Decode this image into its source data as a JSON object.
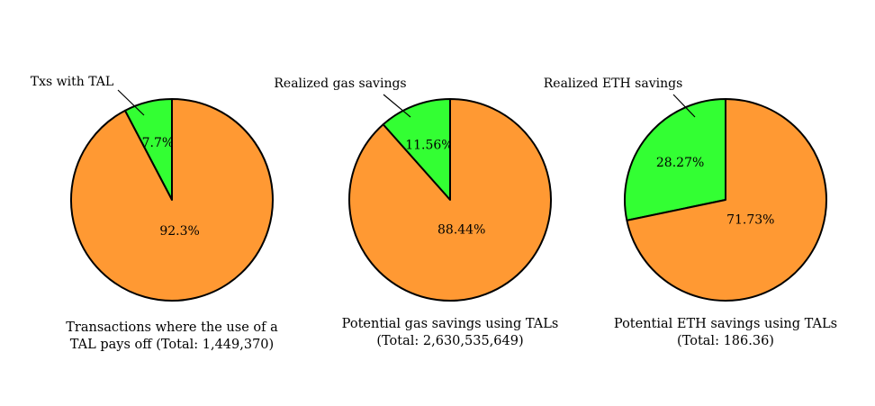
{
  "chart_data": [
    {
      "type": "pie",
      "callout_label": "Txs with TAL",
      "caption_lines": [
        "Transactions where the use of a",
        "TAL pays off (Total: 1,449,370)"
      ],
      "slices": [
        {
          "label": "7.7%",
          "value": 7.7,
          "color": "#33ff33"
        },
        {
          "label": "92.3%",
          "value": 92.3,
          "color": "#ff9933"
        }
      ]
    },
    {
      "type": "pie",
      "callout_label": "Realized gas savings",
      "caption_lines": [
        "Potential gas savings using TALs",
        "(Total: 2,630,535,649)"
      ],
      "slices": [
        {
          "label": "11.56%",
          "value": 11.56,
          "color": "#33ff33"
        },
        {
          "label": "88.44%",
          "value": 88.44,
          "color": "#ff9933"
        }
      ]
    },
    {
      "type": "pie",
      "callout_label": "Realized ETH savings",
      "caption_lines": [
        "Potential ETH savings using TALs",
        "(Total: 186.36)"
      ],
      "slices": [
        {
          "label": "28.27%",
          "value": 28.27,
          "color": "#33ff33"
        },
        {
          "label": "71.73%",
          "value": 71.73,
          "color": "#ff9933"
        }
      ]
    }
  ]
}
